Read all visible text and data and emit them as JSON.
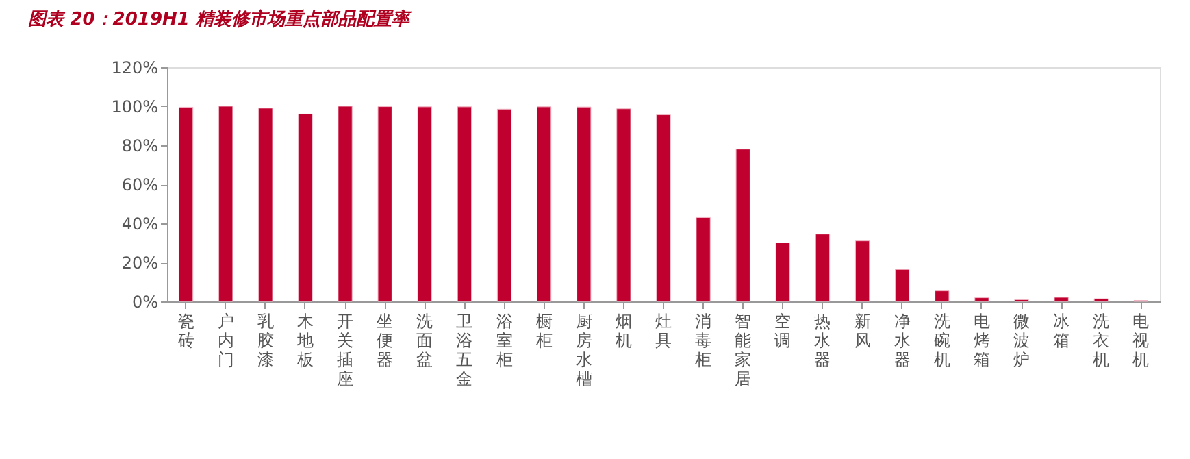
{
  "chart_data": {
    "type": "bar",
    "title": "图表 20：2019H1 精装修市场重点部品配置率",
    "categories": [
      "瓷砖",
      "户内门",
      "乳胶漆",
      "木地板",
      "开关插座",
      "坐便器",
      "洗面盆",
      "卫浴五金",
      "浴室柜",
      "橱柜",
      "厨房水槽",
      "烟机",
      "灶具",
      "消毒柜",
      "智能家居",
      "空调",
      "热水器",
      "新风",
      "净水器",
      "洗碗机",
      "电烤箱",
      "微波炉",
      "冰箱",
      "洗衣机",
      "电视机"
    ],
    "values": [
      99.5,
      100,
      99,
      96,
      100,
      99.8,
      99.7,
      99.7,
      98.5,
      99.7,
      99.6,
      98.7,
      95.6,
      43,
      78,
      30,
      34.5,
      31,
      16.4,
      5.4,
      1.9,
      0.9,
      2.1,
      1.4,
      0.5
    ],
    "color": "#c0002f",
    "ylim": [
      0,
      120
    ],
    "yticks": [
      {
        "value": 0,
        "label": "0%"
      },
      {
        "value": 20,
        "label": "20%"
      },
      {
        "value": 40,
        "label": "40%"
      },
      {
        "value": 60,
        "label": "60%"
      },
      {
        "value": 80,
        "label": "80%"
      },
      {
        "value": 100,
        "label": "100%"
      },
      {
        "value": 120,
        "label": "120%"
      }
    ],
    "grid": false
  }
}
